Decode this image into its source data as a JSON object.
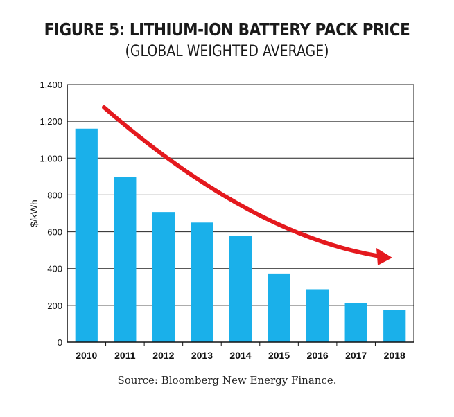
{
  "chart_data": {
    "type": "bar",
    "title": "FIGURE 5: LITHIUM-ION BATTERY PACK PRICE",
    "subtitle": "(GLOBAL WEIGHTED AVERAGE)",
    "xlabel": "",
    "ylabel": "$/kWh",
    "categories": [
      "2010",
      "2011",
      "2012",
      "2013",
      "2014",
      "2015",
      "2016",
      "2017",
      "2018"
    ],
    "values": [
      1160,
      899,
      707,
      650,
      577,
      373,
      288,
      214,
      176
    ],
    "ylim": [
      0,
      1400
    ],
    "yticks": [
      0,
      200,
      400,
      600,
      800,
      1000,
      1200,
      1400
    ],
    "ytick_labels": [
      "0",
      "200",
      "400",
      "600",
      "800",
      "1,000",
      "1,200",
      "1,400"
    ],
    "grid": true,
    "bar_color": "#1ab0ea",
    "trend_arrow_color": "#e4191e",
    "source": "Source: Bloomberg New Energy Finance."
  }
}
